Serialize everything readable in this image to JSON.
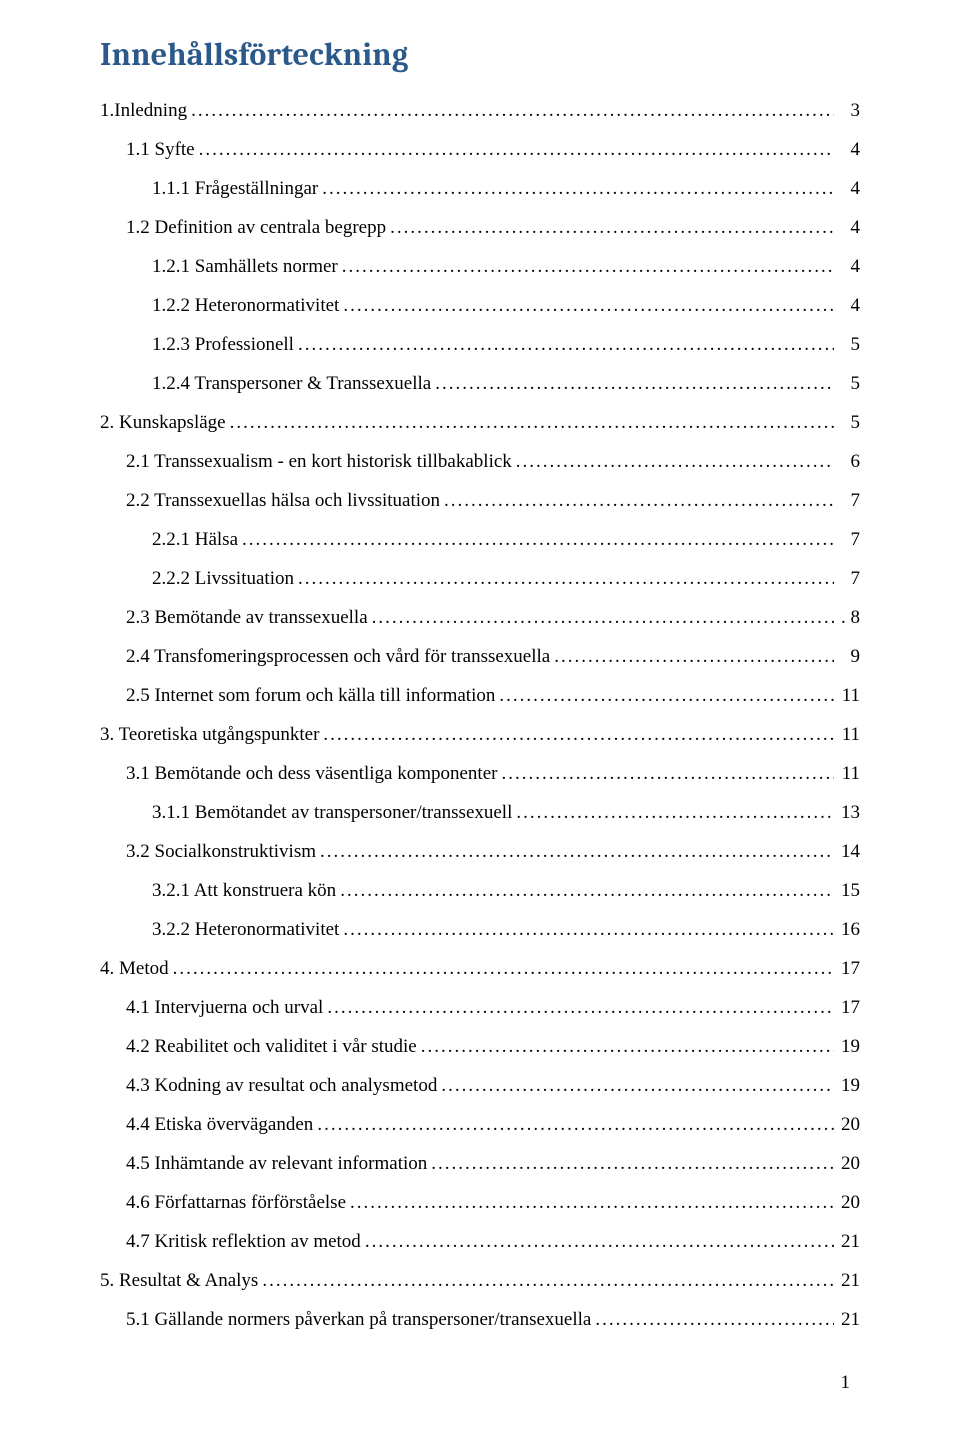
{
  "title": "Innehållsförteckning",
  "page_number": "1",
  "title_color": "#2b5a8a",
  "text_color": "#000000",
  "background_color": "#ffffff",
  "font_family_title": "Cambria",
  "font_family_body": "Times New Roman",
  "title_fontsize_pt": 24,
  "body_fontsize_pt": 14,
  "toc": [
    {
      "level": 0,
      "label": "1.Inledning",
      "page": "3"
    },
    {
      "level": 1,
      "label": "1.1 Syfte",
      "page": "4"
    },
    {
      "level": 2,
      "label": "1.1.1 Frågeställningar",
      "page": "4"
    },
    {
      "level": 1,
      "label": "1.2 Definition av centrala begrepp",
      "page": "4"
    },
    {
      "level": 2,
      "label": "1.2.1 Samhällets normer",
      "page": "4"
    },
    {
      "level": 2,
      "label": "1.2.2 Heteronormativitet",
      "page": "4"
    },
    {
      "level": 2,
      "label": "1.2.3 Professionell",
      "page": "5"
    },
    {
      "level": 2,
      "label": "1.2.4 Transpersoner & Transsexuella",
      "page": "5"
    },
    {
      "level": 0,
      "label": "2. Kunskapsläge",
      "page": "5"
    },
    {
      "level": 1,
      "label": "2.1 Transsexualism - en kort historisk tillbakablick",
      "page": "6"
    },
    {
      "level": 1,
      "label": "2.2 Transsexuellas hälsa och livssituation",
      "page": "7"
    },
    {
      "level": 2,
      "label": "2.2.1 Hälsa",
      "page": "7"
    },
    {
      "level": 2,
      "label": "2.2.2 Livssituation",
      "page": "7"
    },
    {
      "level": 1,
      "label": "2.3 Bemötande av transsexuella",
      "page": ". 8"
    },
    {
      "level": 1,
      "label": "2.4 Transfomeringsprocessen och vård för transsexuella",
      "page": "9"
    },
    {
      "level": 1,
      "label": "2.5 Internet som forum och källa till information",
      "page": "11"
    },
    {
      "level": 0,
      "label": "3. Teoretiska utgångspunkter",
      "page": "11"
    },
    {
      "level": 1,
      "label": "3.1 Bemötande och dess väsentliga komponenter",
      "page": "11"
    },
    {
      "level": 2,
      "label": "3.1.1 Bemötandet av transpersoner/transsexuell",
      "page": "13"
    },
    {
      "level": 1,
      "label": "3.2 Socialkonstruktivism",
      "page": "14"
    },
    {
      "level": 2,
      "label": "3.2.1 Att konstruera kön",
      "page": "15"
    },
    {
      "level": 2,
      "label": "3.2.2 Heteronormativitet",
      "page": "16"
    },
    {
      "level": 0,
      "label": "4. Metod",
      "page": "17"
    },
    {
      "level": 1,
      "label": "4.1 Intervjuerna och urval",
      "page": "17"
    },
    {
      "level": 1,
      "label": "4.2 Reabilitet och validitet i vår studie",
      "page": "19"
    },
    {
      "level": 1,
      "label": "4.3 Kodning av resultat och analysmetod",
      "page": "19"
    },
    {
      "level": 1,
      "label": "4.4 Etiska överväganden",
      "page": "20"
    },
    {
      "level": 1,
      "label": "4.5 Inhämtande av relevant information",
      "page": "20"
    },
    {
      "level": 1,
      "label": "4.6 Författarnas förförståelse",
      "page": "20"
    },
    {
      "level": 1,
      "label": "4.7 Kritisk reflektion av metod",
      "page": "21"
    },
    {
      "level": 0,
      "label": "5. Resultat & Analys",
      "page": "21"
    },
    {
      "level": 1,
      "label": "5.1 Gällande normers påverkan på transpersoner/transexuella",
      "page": "21"
    }
  ]
}
